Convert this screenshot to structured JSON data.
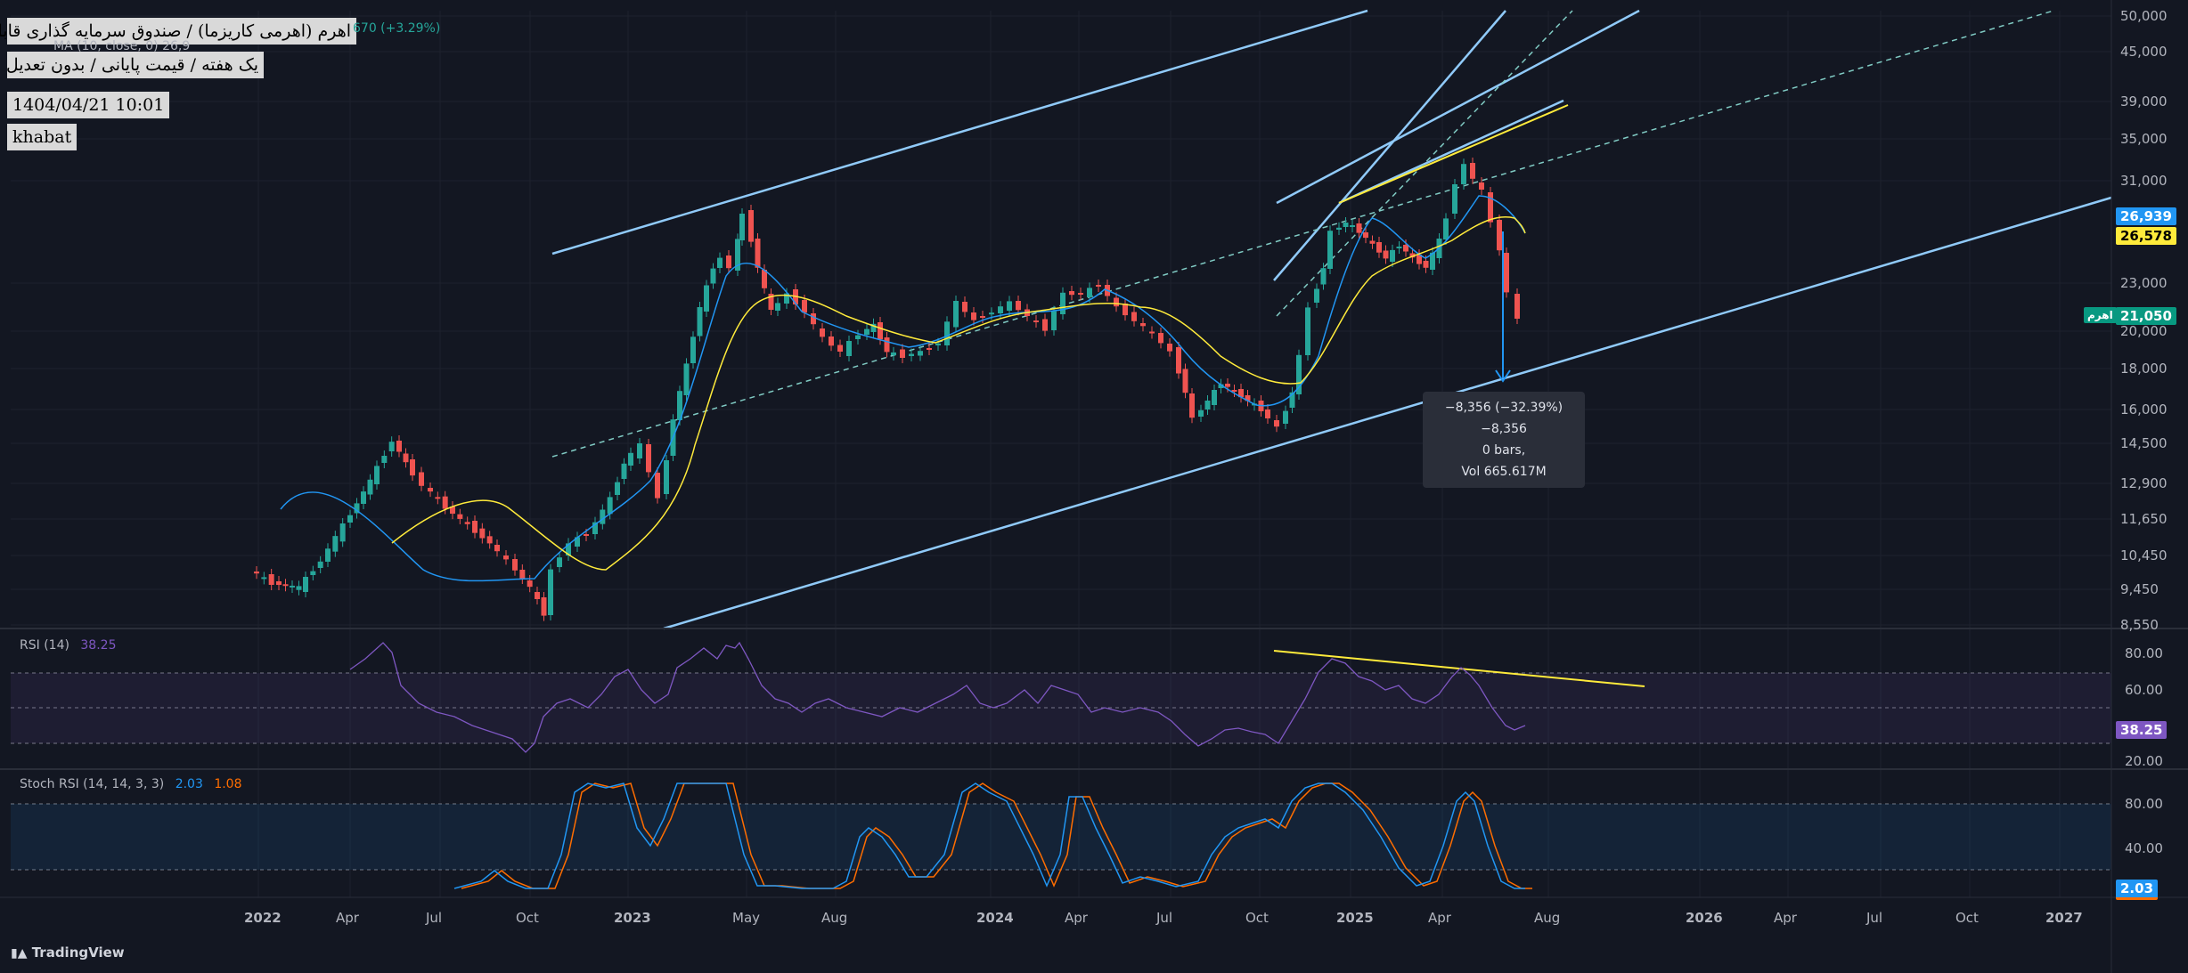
{
  "info": {
    "line1": "اهرم (اهرمی کاریزما) / صندوق سرمایه گذاری قابل معامله",
    "line2": "یک هفته / قیمت پایانی / بدون تعدیل",
    "line3": "1404/04/21 10:01",
    "line4": "khabat"
  },
  "legend": {
    "change_text": "670 (+3.29%)",
    "ma_text": "MA (10, close, 0)  26,9",
    "rsi_label": "RSI (14)",
    "rsi_value": "38.25",
    "stoch_label": "Stoch RSI (14, 14, 3, 3)",
    "stoch_k": "2.03",
    "stoch_d": "1.08"
  },
  "price_scale": [
    "50,000",
    "45,000",
    "39,000",
    "35,000",
    "31,000",
    "23,000",
    "20,000",
    "18,000",
    "16,000",
    "14,500",
    "12,900",
    "11,650",
    "10,450",
    "9,450",
    "8,550"
  ],
  "rsi_scale": [
    "80.00",
    "60.00",
    "20.00"
  ],
  "stoch_scale": [
    "80.00",
    "40.00"
  ],
  "tags": {
    "ma_blue": "26,939",
    "ma_yellow": "26,578",
    "last_price": "21,050",
    "symbol": "اهرم",
    "rsi": "38.25",
    "stoch": "2.03"
  },
  "time_axis": [
    "2022",
    "Apr",
    "Jul",
    "Oct",
    "2023",
    "May",
    "Aug",
    "2024",
    "Apr",
    "Jul",
    "Oct",
    "2025",
    "Apr",
    "Aug",
    "2026",
    "Apr",
    "Jul",
    "Oct",
    "2027"
  ],
  "measure": {
    "line1": "−8,356 (−32.39%) −8,356",
    "line2": "0 bars,",
    "line3": "Vol 665.617M"
  },
  "footer": "TradingView",
  "colors": {
    "bg": "#131722",
    "up": "#26a69a",
    "down": "#ef5350",
    "ma_blue": "#2196f3",
    "ma_yellow": "#ffeb3b",
    "channel": "#90caf9",
    "rsi": "#7e57c2",
    "stoch_k": "#2196f3",
    "stoch_d": "#ff6d00"
  }
}
